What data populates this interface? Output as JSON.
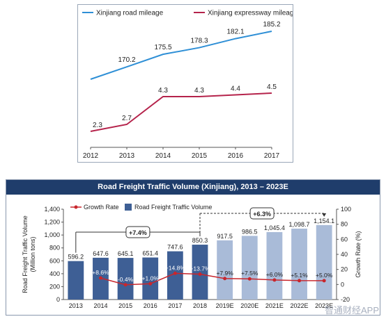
{
  "chart_data": [
    {
      "type": "line",
      "x": [
        "2012",
        "2013",
        "2014",
        "2015",
        "2016",
        "2017"
      ],
      "series": [
        {
          "name": "Xinjiang road mileage",
          "color": "#2e8fd6",
          "values": [
            165.0,
            170.2,
            175.5,
            178.3,
            182.1,
            185.2
          ],
          "labels": [
            "",
            "170.2",
            "175.5",
            "178.3",
            "182.1",
            "185.2"
          ]
        },
        {
          "name": "Xinjiang expressway mileage",
          "color": "#b5234b",
          "values": [
            2.3,
            2.7,
            4.3,
            4.3,
            4.4,
            4.5
          ],
          "labels": [
            "2.3",
            "2.7",
            "4.3",
            "4.3",
            "4.4",
            "4.5"
          ]
        }
      ],
      "legend_position": "top"
    },
    {
      "type": "bar",
      "title": "Road Freight Traffic Volume (Xinjiang), 2013 – 2023E",
      "categories": [
        "2013",
        "2014",
        "2015",
        "2016",
        "2017",
        "2018",
        "2019E",
        "2020E",
        "2021E",
        "2022E",
        "2023E"
      ],
      "series": [
        {
          "name": "Road Freight Traffic Volume",
          "color": "#3e5f95",
          "forecast_color": "#a9bbd8",
          "values": [
            596.2,
            647.6,
            645.1,
            651.4,
            747.6,
            850.3,
            917.5,
            986.5,
            1045.4,
            1098.7,
            1154.1
          ],
          "labels": [
            "596.2",
            "647.6",
            "645.1",
            "651.4",
            "747.6",
            "850.3",
            "917.5",
            "986.5",
            "1,045.4",
            "1,098.7",
            "1,154.1"
          ]
        },
        {
          "name": "Growth Rate",
          "color": "#c8262c",
          "values": [
            null,
            8.6,
            -0.4,
            1.0,
            14.8,
            13.7,
            7.9,
            7.5,
            6.0,
            5.1,
            5.0
          ],
          "labels": [
            "",
            "+8.6%",
            "-0.4%",
            "+1.0%",
            "+14.8%",
            "+13.7%",
            "+7.9%",
            "+7.5%",
            "+6.0%",
            "+5.1%",
            "+5.0%"
          ]
        }
      ],
      "ylabel": "Road Freight Traffic Volume (Million tons)",
      "y2label": "Growth Rate (%)",
      "ylim": [
        0,
        1400
      ],
      "y2lim": [
        -20,
        100
      ],
      "yticks": [
        "0",
        "200",
        "400",
        "600",
        "800",
        "1,000",
        "1,200",
        "1,400"
      ],
      "y2ticks": [
        "-20",
        "0",
        "20",
        "40",
        "60",
        "80",
        "100"
      ],
      "annotations": [
        {
          "label": "+7.4%",
          "from": "2013",
          "to": "2018"
        },
        {
          "label": "+6.3%",
          "from": "2018",
          "to": "2023E"
        }
      ],
      "legend_position": "top-left"
    }
  ],
  "watermark": "智通财经APP"
}
